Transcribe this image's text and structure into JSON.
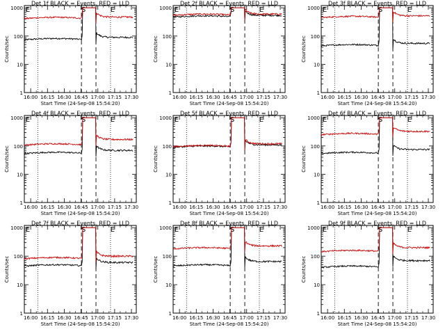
{
  "colors": {
    "events": "#000000",
    "lld": "#d00000",
    "axis": "#000000",
    "background": "#ffffff"
  },
  "chart_data": {
    "type": "line",
    "ylabel": "Counts/sec",
    "xlabel": "Start Time (24-Sep-08 15:54:20)",
    "yscale": "log",
    "ylim": [
      1,
      1200
    ],
    "y_tick_labels": [
      "1",
      "10",
      "100",
      "1000"
    ],
    "x_tick_labels": [
      "16:00",
      "16:15",
      "16:30",
      "16:45",
      "17:00",
      "17:15",
      "17:30"
    ],
    "x_minutes": {
      "start": 0,
      "end": 100,
      "ticks": [
        5.67,
        20.67,
        35.67,
        50.67,
        65.67,
        80.67,
        95.67
      ]
    },
    "interval_labels": [
      "E",
      "S",
      "E"
    ],
    "intervals_minutes": {
      "dotted": [
        12,
        77
      ],
      "dashed": [
        51,
        64
      ]
    },
    "legend": "BLACK = Events, RED = LLD",
    "panels": [
      {
        "title": "Det 1f BLACK = Events, RED = LLD",
        "series": [
          {
            "name": "Events",
            "pre": 82,
            "post": 90,
            "peak": 1000
          },
          {
            "name": "LLD",
            "pre": 460,
            "post": 470,
            "peak": 1000
          }
        ]
      },
      {
        "title": "Det 2f BLACK = Events, RED = LLD",
        "series": [
          {
            "name": "Events",
            "pre": 520,
            "post": 540,
            "peak": 1000
          },
          {
            "name": "LLD",
            "pre": 600,
            "post": 600,
            "peak": 1000
          }
        ]
      },
      {
        "title": "Det 3f BLACK = Events, RED = LLD",
        "series": [
          {
            "name": "Events",
            "pre": 50,
            "post": 55,
            "peak": 1000
          },
          {
            "name": "LLD",
            "pre": 500,
            "post": 520,
            "peak": 1000
          }
        ]
      },
      {
        "title": "Det 4f BLACK = Events, RED = LLD",
        "series": [
          {
            "name": "Events",
            "pre": 60,
            "post": 70,
            "peak": 1000
          },
          {
            "name": "LLD",
            "pre": 120,
            "post": 170,
            "peak": 1000
          }
        ]
      },
      {
        "title": "Det 5f BLACK = Events, RED = LLD",
        "series": [
          {
            "name": "Events",
            "pre": 100,
            "post": 110,
            "peak": 1000
          },
          {
            "name": "LLD",
            "pre": 105,
            "post": 120,
            "peak": 1000
          }
        ]
      },
      {
        "title": "Det 6f BLACK = Events, RED = LLD",
        "series": [
          {
            "name": "Events",
            "pre": 60,
            "post": 75,
            "peak": 1000
          },
          {
            "name": "LLD",
            "pre": 280,
            "post": 330,
            "peak": 1000
          }
        ]
      },
      {
        "title": "Det 7f BLACK = Events, RED = LLD",
        "series": [
          {
            "name": "Events",
            "pre": 50,
            "post": 60,
            "peak": 1000
          },
          {
            "name": "LLD",
            "pre": 90,
            "post": 100,
            "peak": 1000
          }
        ]
      },
      {
        "title": "Det 8f BLACK = Events, RED = LLD",
        "series": [
          {
            "name": "Events",
            "pre": 50,
            "post": 65,
            "peak": 1000
          },
          {
            "name": "LLD",
            "pre": 200,
            "post": 230,
            "peak": 1000
          }
        ]
      },
      {
        "title": "Det 9f BLACK = Events, RED = LLD",
        "series": [
          {
            "name": "Events",
            "pre": 45,
            "post": 70,
            "peak": 1000
          },
          {
            "name": "LLD",
            "pre": 160,
            "post": 200,
            "peak": 1000
          }
        ]
      }
    ]
  }
}
